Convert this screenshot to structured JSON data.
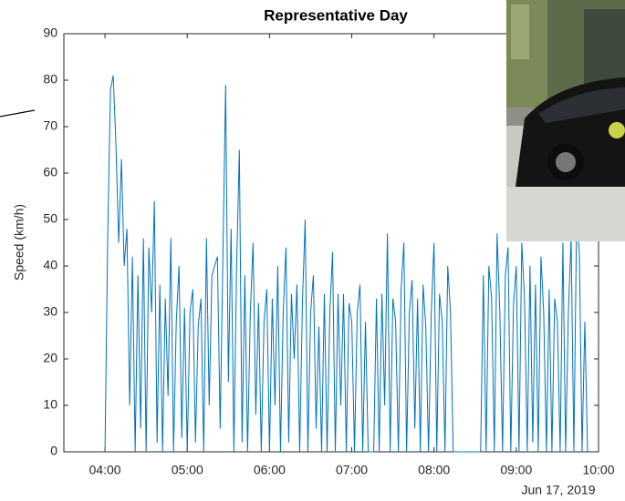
{
  "chart_data": {
    "type": "line",
    "title": "Representative Day",
    "ylabel": "Speed (km/h)",
    "date_label": "Jun 17, 2019",
    "color": "#0072bd",
    "x": [
      "04:00",
      "04:02",
      "04:04",
      "04:06",
      "04:08",
      "04:10",
      "04:12",
      "04:14",
      "04:16",
      "04:18",
      "04:20",
      "04:22",
      "04:24",
      "04:26",
      "04:28",
      "04:30",
      "04:32",
      "04:34",
      "04:36",
      "04:38",
      "04:40",
      "04:42",
      "04:44",
      "04:46",
      "04:48",
      "04:50",
      "04:52",
      "04:54",
      "04:56",
      "04:58",
      "05:00",
      "05:02",
      "05:04",
      "05:06",
      "05:08",
      "05:10",
      "05:12",
      "05:14",
      "05:16",
      "05:18",
      "05:20",
      "05:22",
      "05:24",
      "05:26",
      "05:28",
      "05:30",
      "05:32",
      "05:34",
      "05:36",
      "05:38",
      "05:40",
      "05:42",
      "05:44",
      "05:46",
      "05:48",
      "05:50",
      "05:52",
      "05:54",
      "05:56",
      "05:58",
      "06:00",
      "06:02",
      "06:04",
      "06:06",
      "06:08",
      "06:10",
      "06:12",
      "06:14",
      "06:16",
      "06:18",
      "06:20",
      "06:22",
      "06:24",
      "06:26",
      "06:28",
      "06:30",
      "06:32",
      "06:34",
      "06:36",
      "06:38",
      "06:40",
      "06:42",
      "06:44",
      "06:46",
      "06:48",
      "06:50",
      "06:52",
      "06:54",
      "06:56",
      "06:58",
      "07:00",
      "07:02",
      "07:04",
      "07:06",
      "07:08",
      "07:10",
      "07:12",
      "07:14",
      "07:16",
      "07:18",
      "07:20",
      "07:22",
      "07:24",
      "07:26",
      "07:28",
      "07:30",
      "07:32",
      "07:34",
      "07:36",
      "07:38",
      "07:40",
      "07:42",
      "07:44",
      "07:46",
      "07:48",
      "07:50",
      "07:52",
      "07:54",
      "07:56",
      "07:58",
      "08:00",
      "08:02",
      "08:04",
      "08:06",
      "08:08",
      "08:10",
      "08:12",
      "08:14",
      "08:16",
      "08:18",
      "08:20",
      "08:22",
      "08:24",
      "08:26",
      "08:28",
      "08:30",
      "08:32",
      "08:34",
      "08:36",
      "08:38",
      "08:40",
      "08:42",
      "08:44",
      "08:46",
      "08:48",
      "08:50",
      "08:52",
      "08:54",
      "08:56",
      "08:58",
      "09:00",
      "09:02",
      "09:04",
      "09:06",
      "09:08",
      "09:10",
      "09:12",
      "09:14",
      "09:16",
      "09:18",
      "09:20",
      "09:22",
      "09:24",
      "09:26",
      "09:28",
      "09:30",
      "09:32",
      "09:34",
      "09:36",
      "09:38",
      "09:40",
      "09:42",
      "09:44",
      "09:46",
      "09:48",
      "09:50",
      "09:52"
    ],
    "values": [
      0,
      47,
      78,
      81,
      66,
      45,
      63,
      40,
      48,
      10,
      42,
      0,
      38,
      5,
      46,
      0,
      44,
      30,
      54,
      2,
      36,
      0,
      33,
      12,
      46,
      0,
      28,
      40,
      3,
      31,
      0,
      30,
      35,
      2,
      27,
      33,
      0,
      46,
      10,
      38,
      40,
      42,
      5,
      42,
      79,
      15,
      48,
      0,
      40,
      65,
      2,
      38,
      0,
      30,
      45,
      8,
      32,
      0,
      28,
      35,
      0,
      33,
      10,
      40,
      0,
      30,
      44,
      2,
      34,
      20,
      36,
      0,
      32,
      50,
      0,
      30,
      38,
      5,
      27,
      0,
      34,
      0,
      30,
      43,
      0,
      34,
      10,
      34,
      0,
      32,
      28,
      0,
      30,
      36,
      0,
      28,
      0,
      0,
      0,
      33,
      0,
      34,
      10,
      47,
      0,
      33,
      28,
      0,
      35,
      45,
      0,
      30,
      37,
      5,
      33,
      0,
      36,
      27,
      0,
      30,
      45,
      0,
      34,
      28,
      0,
      40,
      30,
      0,
      0,
      0,
      0,
      0,
      0,
      0,
      0,
      0,
      0,
      0,
      38,
      0,
      40,
      33,
      0,
      47,
      30,
      0,
      38,
      44,
      0,
      32,
      40,
      0,
      45,
      33,
      0,
      40,
      2,
      36,
      0,
      42,
      30,
      0,
      35,
      0,
      33,
      28,
      0,
      45,
      0,
      30,
      46,
      0,
      50,
      43,
      0,
      28,
      0
    ],
    "xlim": [
      "03:30",
      "10:00"
    ],
    "xticks": [
      "04:00",
      "05:00",
      "06:00",
      "07:00",
      "08:00",
      "09:00",
      "10:00"
    ],
    "ylim": [
      0,
      90
    ],
    "yticks": [
      0,
      10,
      20,
      30,
      40,
      50,
      60,
      70,
      80,
      90
    ]
  }
}
